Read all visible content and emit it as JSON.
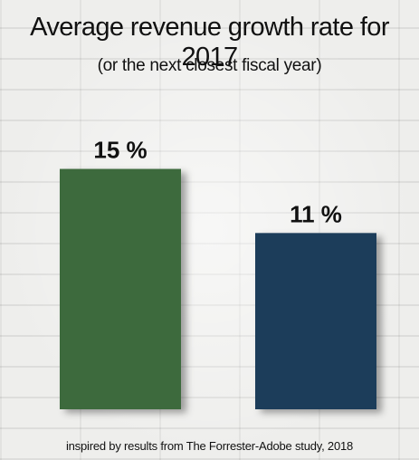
{
  "chart_data": {
    "type": "bar",
    "title": "Average revenue growth rate for 2017",
    "subtitle": "(or the next closest fiscal year)",
    "categories": [
      "",
      ""
    ],
    "values": [
      15,
      11
    ],
    "value_labels": [
      "15 %",
      "11 %"
    ],
    "colors": [
      "#3e6b3e",
      "#1b3d5a"
    ],
    "ylim": [
      0,
      16.5
    ],
    "grid": false,
    "note": "inspired by results from The Forrester-Adobe study, 2018"
  }
}
